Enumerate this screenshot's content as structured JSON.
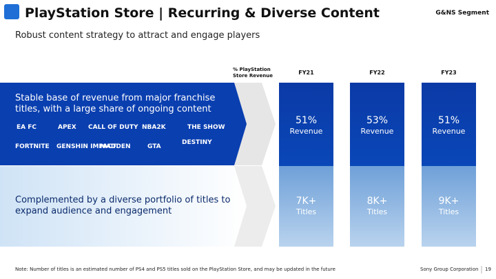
{
  "header": {
    "title": "PlayStation Store | Recurring & Diverse Content",
    "segment": "G&NS Segment",
    "subtitle": "Robust content strategy to attract and engage players"
  },
  "table": {
    "column_header": "% PlayStation Store Revenue",
    "columns": [
      "FY21",
      "FY22",
      "FY23"
    ],
    "rows": [
      {
        "label": "Stable base of revenue from major franchise titles, with a large share of ongoing content",
        "cells": [
          [
            "51%",
            "Revenue"
          ],
          [
            "53%",
            "Revenue"
          ],
          [
            "51%",
            "Revenue"
          ]
        ]
      },
      {
        "label": "Complemented by a diverse portfolio of titles to expand audience and engagement",
        "cells": [
          [
            "7K+",
            "Titles"
          ],
          [
            "8K+",
            "Titles"
          ],
          [
            "9K+",
            "Titles"
          ]
        ]
      }
    ]
  },
  "logos": [
    "EA FC",
    "APEX",
    "CALL OF DUTY",
    "NBA2K",
    "THE SHOW",
    "FORTNITE",
    "GENSHIN IMPACT",
    "MADDEN",
    "GTA",
    "DESTINY"
  ],
  "footer": {
    "note": "Note: Number of titles is an estimated number of PS4 and PS5 titles sold on the PlayStation Store, and may be updated in the future",
    "company": "Sony Group Corporation",
    "page": "19"
  }
}
